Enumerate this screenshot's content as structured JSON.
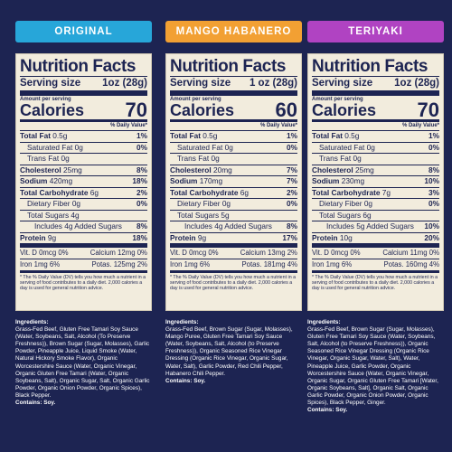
{
  "colors": {
    "background": "#1d2452",
    "original": "#27a6d9",
    "mango": "#f2a033",
    "teriyaki": "#b043c2",
    "panel": "#f2ecdd"
  },
  "columns": [
    {
      "flavor": "ORIGINAL",
      "color": "#27a6d9",
      "nutrition": {
        "title": "Nutrition Facts",
        "serving_label": "Serving size",
        "serving_value": "1oz (28g)",
        "amount_per_serving": "Amount per serving",
        "calories_label": "Calories",
        "calories_value": "70",
        "dv_header": "% Daily Value*",
        "total_fat": "Total Fat",
        "total_fat_amt": "0.5g",
        "total_fat_dv": "1%",
        "sat_fat": "Saturated Fat",
        "sat_fat_amt": "0g",
        "sat_fat_dv": "0%",
        "trans_fat": "Trans Fat",
        "trans_fat_amt": "0g",
        "cholesterol": "Cholesterol",
        "cholesterol_amt": "25mg",
        "cholesterol_dv": "8%",
        "sodium": "Sodium",
        "sodium_amt": "420mg",
        "sodium_dv": "18%",
        "carb": "Total Carbohydrate",
        "carb_amt": "6g",
        "carb_dv": "2%",
        "fiber": "Dietary Fiber",
        "fiber_amt": "0g",
        "fiber_dv": "0%",
        "sugars": "Total Sugars 4g",
        "added_sugars": "Includes 4g Added Sugars",
        "added_sugars_dv": "8%",
        "protein": "Protein",
        "protein_amt": "9g",
        "protein_dv": "18%",
        "vit_d": "Vit. D 0mcg 0%",
        "calcium": "Calcium 12mg 0%",
        "iron": "Iron 1mg 6%",
        "potas": "Potas. 125mg 2%",
        "footnote": "* The % Daily Value (DV) tells you how much a nutrient in a serving of food contributes to a daily diet. 2,000 calories a day is used for general nutrition advice."
      },
      "ingredients_label": "Ingredients:",
      "ingredients": "Grass-Fed Beef, Gluten Free Tamari Soy Sauce (Water, Soybeans, Salt, Alcohol (To Preserve Freshness)), Brown Sugar (Sugar, Molasses), Garlic Powder, Pineapple Juice, Liquid Smoke (Water, Natural Hickory Smoke Flavor), Organic Worcestershire Sauce (Water, Organic Vinegar, Organic Gluten Free Tamari (Water, Organic Soybeans, Salt), Organic Sugar, Salt, Organic Garlic Powder, Organic Onion Powder, Organic Spices), Black Pepper.",
      "contains": "Contains: Soy."
    },
    {
      "flavor": "MANGO HABANERO",
      "color": "#f2a033",
      "nutrition": {
        "title": "Nutrition Facts",
        "serving_label": "Serving size",
        "serving_value": "1 oz (28g)",
        "amount_per_serving": "Amount per serving",
        "calories_label": "Calories",
        "calories_value": "60",
        "dv_header": "% Daily Value*",
        "total_fat": "Total Fat",
        "total_fat_amt": "0.5g",
        "total_fat_dv": "1%",
        "sat_fat": "Saturated Fat",
        "sat_fat_amt": "0g",
        "sat_fat_dv": "0%",
        "trans_fat": "Trans Fat",
        "trans_fat_amt": "0g",
        "cholesterol": "Cholesterol",
        "cholesterol_amt": "20mg",
        "cholesterol_dv": "7%",
        "sodium": "Sodium",
        "sodium_amt": "170mg",
        "sodium_dv": "7%",
        "carb": "Total Carbohydrate",
        "carb_amt": "6g",
        "carb_dv": "2%",
        "fiber": "Dietary Fiber",
        "fiber_amt": "0g",
        "fiber_dv": "0%",
        "sugars": "Total Sugars 5g",
        "added_sugars": "Includes 4g Added Sugars",
        "added_sugars_dv": "8%",
        "protein": "Protein",
        "protein_amt": "9g",
        "protein_dv": "17%",
        "vit_d": "Vit. D 0mcg 0%",
        "calcium": "Calcium 13mg 2%",
        "iron": "Iron 1mg 6%",
        "potas": "Potas. 181mg 4%",
        "footnote": "* The % Daily Value (DV) tells you how much a nutrient in a serving of food contributes to a daily diet. 2,000 calories a day is used for general nutrition advice."
      },
      "ingredients_label": "Ingredients:",
      "ingredients": "Grass-Fed Beef, Brown Sugar (Sugar, Molasses), Mango Puree, Gluten Free Tamari Soy Sauce (Water, Soybeans, Salt, Alcohol (to Preserve Freshness)), Organic Seasoned Rice Vinegar Dressing (Organic Rice Vinegar, Organic Sugar, Water, Salt), Garlic Powder, Red Chili Pepper, Habanero Chili Pepper.",
      "contains": "Contains: Soy."
    },
    {
      "flavor": "TERIYAKI",
      "color": "#b043c2",
      "nutrition": {
        "title": "Nutrition Facts",
        "serving_label": "Serving size",
        "serving_value": "1oz (28g)",
        "amount_per_serving": "Amount per serving",
        "calories_label": "Calories",
        "calories_value": "70",
        "dv_header": "% Daily Value*",
        "total_fat": "Total Fat",
        "total_fat_amt": "0.5g",
        "total_fat_dv": "1%",
        "sat_fat": "Saturated Fat",
        "sat_fat_amt": "0g",
        "sat_fat_dv": "0%",
        "trans_fat": "Trans Fat",
        "trans_fat_amt": "0g",
        "cholesterol": "Cholesterol",
        "cholesterol_amt": "25mg",
        "cholesterol_dv": "8%",
        "sodium": "Sodium",
        "sodium_amt": "230mg",
        "sodium_dv": "10%",
        "carb": "Total Carbohydrate",
        "carb_amt": "7g",
        "carb_dv": "3%",
        "fiber": "Dietary Fiber",
        "fiber_amt": "0g",
        "fiber_dv": "0%",
        "sugars": "Total Sugars 6g",
        "added_sugars": "Includes 5g Added Sugars",
        "added_sugars_dv": "10%",
        "protein": "Protein",
        "protein_amt": "10g",
        "protein_dv": "20%",
        "vit_d": "Vit. D 0mcg 0%",
        "calcium": "Calcium 11mg 0%",
        "iron": "Iron 1mg 6%",
        "potas": "Potas. 160mg 4%",
        "footnote": "* The % Daily Value (DV) tells you how much a nutrient in a serving of food contributes to a daily diet. 2,000 calories a day is used for general nutrition advice."
      },
      "ingredients_label": "Ingredients:",
      "ingredients": "Grass-Fed Beef, Brown Sugar (Sugar, Molasses), Gluten Free Tamari Soy Sauce (Water, Soybeans, Salt, Alcohol (to Preserve Freshness)), Organic Seasoned Rice Vinegar Dressing (Organic Rice Vinegar, Organic Sugar, Water, Salt), Water, Pineapple Juice, Garlic Powder, Organic Worcestershire Sauce (Water, Organic Vinegar, Organic Sugar, Organic Gluten Free Tamari [Water, Organic Soybeans, Salt], Organic Salt, Organic Garlic Powder, Organic Onion Powder, Organic Spices), Black Pepper, Ginger.",
      "contains": "Contains: Soy."
    }
  ]
}
